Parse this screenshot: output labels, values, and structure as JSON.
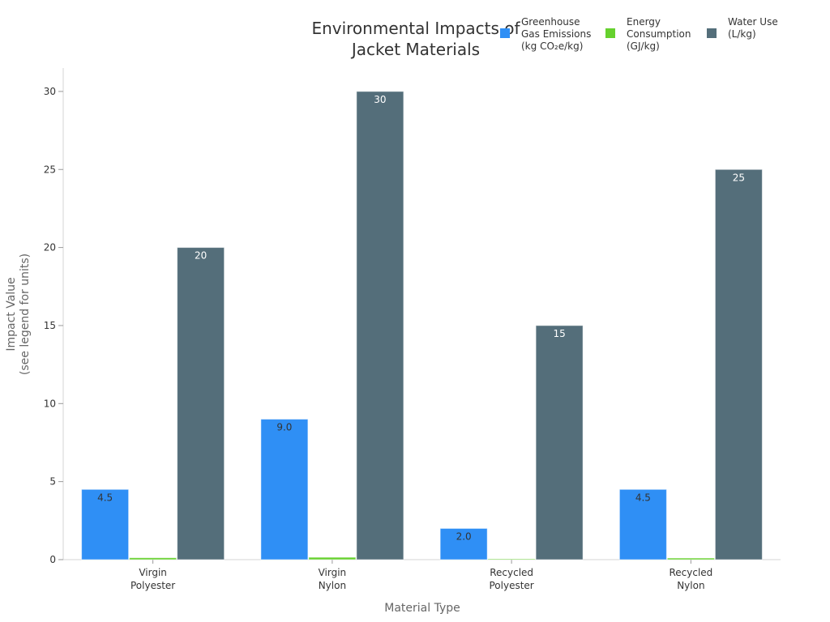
{
  "chart_data": {
    "type": "bar",
    "title": [
      "Environmental Impacts of",
      "Jacket Materials"
    ],
    "xlabel": "Material Type",
    "ylabel": [
      "Impact Value",
      "(see legend for units)"
    ],
    "categories": [
      [
        "Virgin",
        "Polyester"
      ],
      [
        "Virgin",
        "Nylon"
      ],
      [
        "Recycled",
        "Polyester"
      ],
      [
        "Recycled",
        "Nylon"
      ]
    ],
    "ylim": [
      0,
      31.5
    ],
    "yticks": [
      0,
      5,
      10,
      15,
      20,
      25,
      30
    ],
    "legend_position": "top-right",
    "grid": false,
    "series": [
      {
        "name": [
          "Greenhouse",
          "Gas Emissions",
          "(kg CO₂e/kg)"
        ],
        "color": "#2F8FF5",
        "label_color": "#333333",
        "values": [
          4.5,
          9.0,
          2.0,
          4.5
        ],
        "labels": [
          "4.5",
          "9.0",
          "2.0",
          "4.5"
        ]
      },
      {
        "name": [
          "Energy",
          "Consumption",
          "(GJ/kg)"
        ],
        "color": "#66D12E",
        "label_color": "#333333",
        "values": [
          0.12,
          0.15,
          0.05,
          0.1
        ],
        "labels": [
          "",
          "",
          "",
          ""
        ]
      },
      {
        "name": [
          "Water Use",
          "(L/kg)"
        ],
        "color": "#546E7A",
        "label_color": "#ffffff",
        "values": [
          20,
          30,
          15,
          25
        ],
        "labels": [
          "20",
          "30",
          "15",
          "25"
        ]
      }
    ]
  }
}
